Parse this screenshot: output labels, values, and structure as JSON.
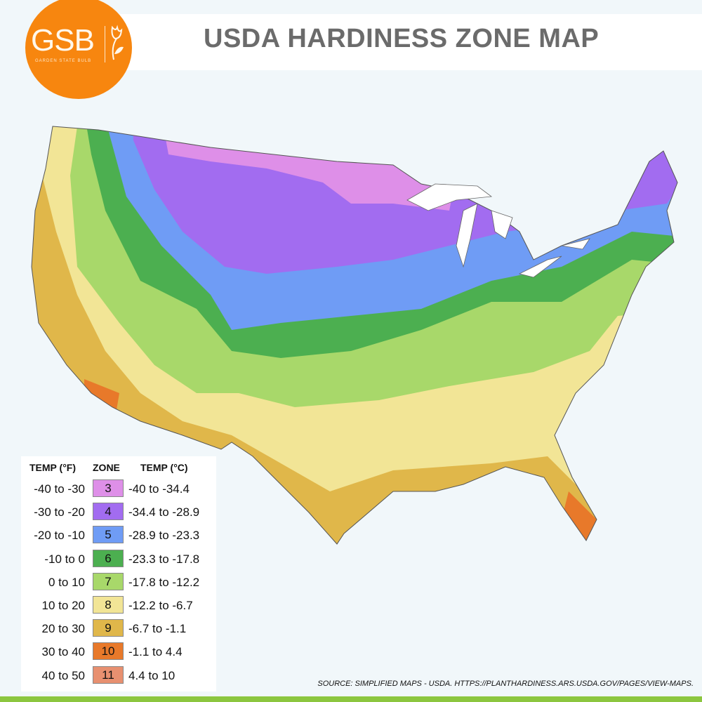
{
  "logo": {
    "text": "GSB",
    "subtitle": "GARDEN STATE BULB",
    "color": "#f7860f"
  },
  "title": "USDA HARDINESS ZONE MAP",
  "legend": {
    "headers": {
      "fahrenheit": "TEMP (°F)",
      "zone": "ZONE",
      "celsius": "TEMP (°C)"
    },
    "rows": [
      {
        "f": "-40 to -30",
        "zone": "3",
        "c": "-40 to -34.4",
        "color": "#de8fe8"
      },
      {
        "f": "-30 to -20",
        "zone": "4",
        "c": "-34.4 to -28.9",
        "color": "#a26cf0"
      },
      {
        "f": "-20 to -10",
        "zone": "5",
        "c": "-28.9 to -23.3",
        "color": "#6f9cf5"
      },
      {
        "f": "-10 to 0",
        "zone": "6",
        "c": "-23.3 to -17.8",
        "color": "#4caf50"
      },
      {
        "f": "0 to 10",
        "zone": "7",
        "c": "-17.8 to -12.2",
        "color": "#a8d86a"
      },
      {
        "f": "10 to 20",
        "zone": "8",
        "c": "-12.2 to -6.7",
        "color": "#f2e596"
      },
      {
        "f": "20 to 30",
        "zone": "9",
        "c": "-6.7 to -1.1",
        "color": "#e0b74a"
      },
      {
        "f": "30 to 40",
        "zone": "10",
        "c": "-1.1 to 4.4",
        "color": "#e8792a"
      },
      {
        "f": "40 to 50",
        "zone": "11",
        "c": "4.4 to 10",
        "color": "#e89070"
      }
    ]
  },
  "source": "SOURCE: SIMPLIFIED MAPS - USDA. HTTPS://PLANTHARDINESS.ARS.USDA.GOV/PAGES/VIEW-MAPS."
}
